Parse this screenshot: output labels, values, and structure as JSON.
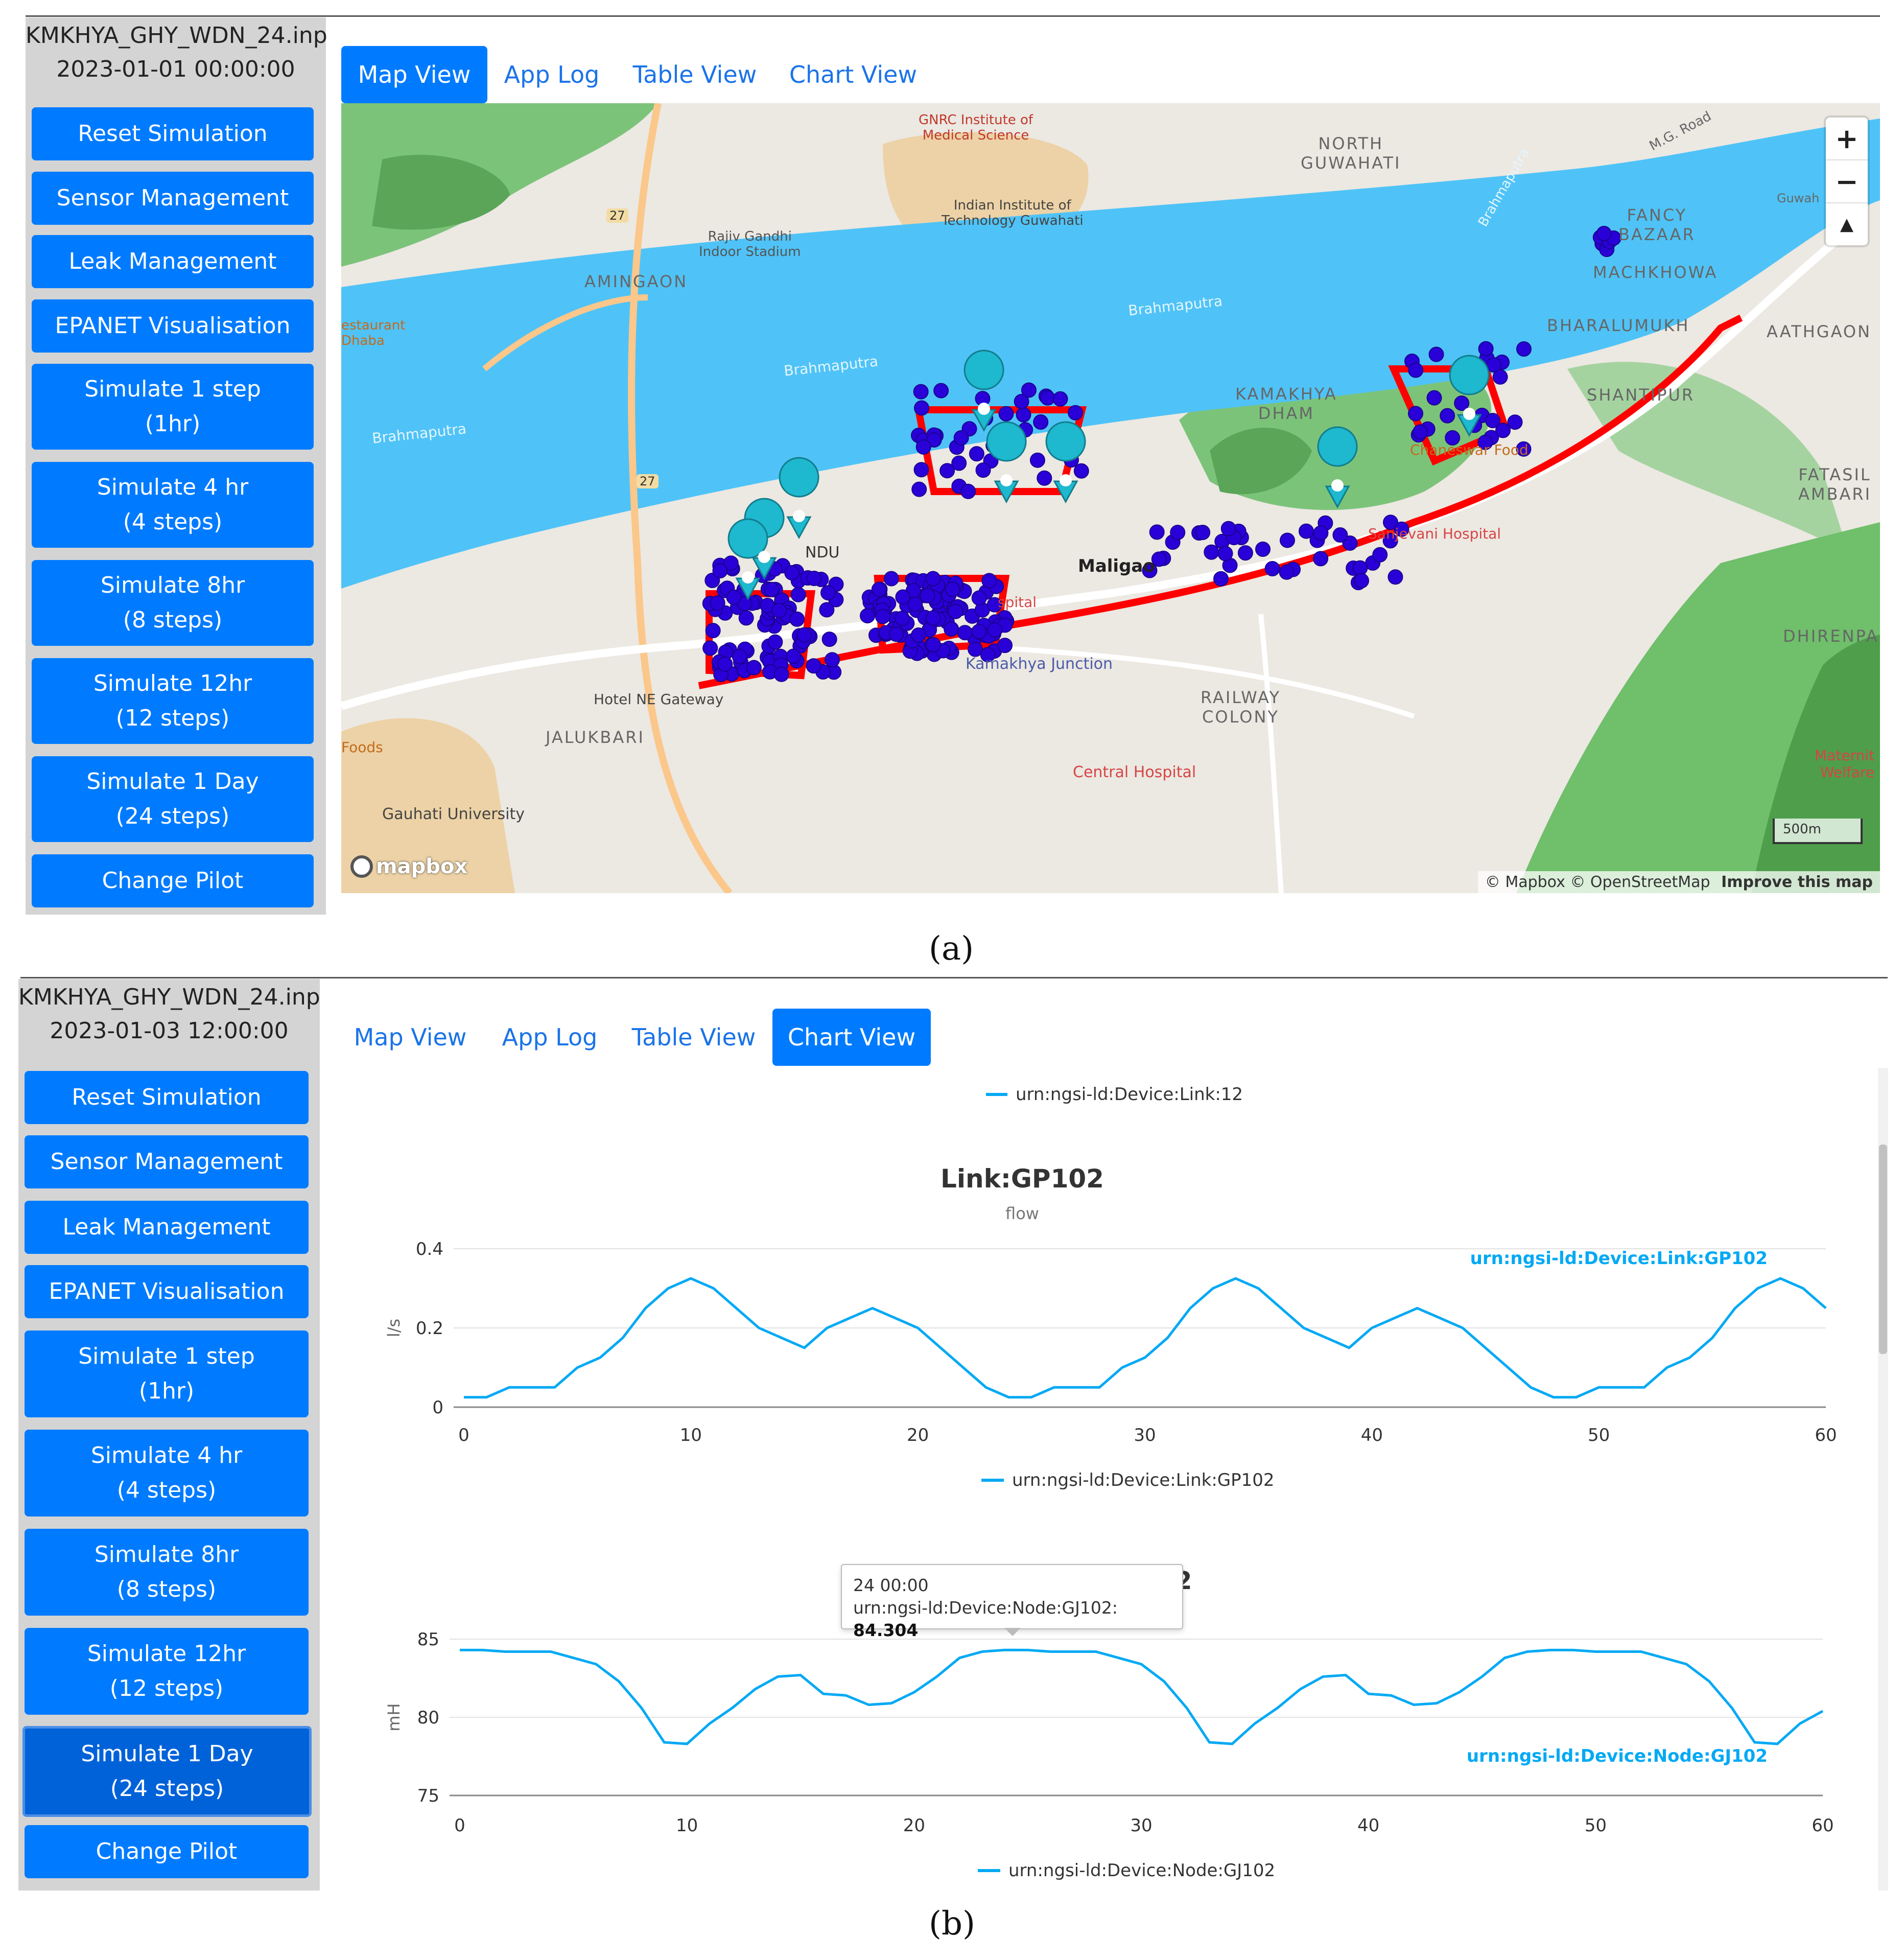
{
  "captions": {
    "a": "(a)",
    "b": "(b)"
  },
  "panel_a": {
    "file_name": "KMKHYA_GHY_WDN_24.inp",
    "sim_time": "2023-01-01 00:00:00",
    "buttons": [
      {
        "label": "Reset Simulation"
      },
      {
        "label": "Sensor Management"
      },
      {
        "label": "Leak Management"
      },
      {
        "label": "EPANET Visualisation"
      },
      {
        "label": "Simulate 1 step\n(1hr)"
      },
      {
        "label": "Simulate 4 hr\n(4 steps)"
      },
      {
        "label": "Simulate 8hr\n(8 steps)"
      },
      {
        "label": "Simulate 12hr\n(12 steps)"
      },
      {
        "label": "Simulate 1 Day\n(24 steps)"
      },
      {
        "label": "Change Pilot"
      }
    ],
    "tabs": [
      {
        "label": "Map View",
        "active": true
      },
      {
        "label": "App Log",
        "active": false
      },
      {
        "label": "Table View",
        "active": false
      },
      {
        "label": "Chart View",
        "active": false
      }
    ],
    "map": {
      "labels": {
        "gnrc": "GNRC Institute of\nMedical Science",
        "iit": "Indian Institute of\nTechnology Guwahati",
        "north_guwahati": "NORTH\nGUWAHATI",
        "mg_road": "M.G. Road",
        "fancy_bazaar": "FANCY\nBAZAAR",
        "machkhowa": "MACHKHOWA",
        "guwahati": "Guwah",
        "rajiv": "Rajiv Gandhi\nIndoor Stadium",
        "amingaon": "AMINGAON",
        "brahmaputra_1": "Brahmaputra",
        "brahmaputra_2": "Brahmaputra",
        "brahmaputra_3": "Brahmaputra",
        "brahmaputra_4": "Brahmaputra",
        "restaurant": "estaurant\nDhaba",
        "bharalumukh": "BHARALUMUKH",
        "aathgaon": "AATHGAON",
        "kamakhya": "KAMAKHYA\nDHAM",
        "shantipur": "SHANTIPUR",
        "food": "Chaneswar Food",
        "fatasil": "FATASIL\nAMBARI",
        "sanjevani": "Sanjevani Hospital",
        "maligaon": "Maligao",
        "hospital": "spital",
        "kamakhya_junction": "Kamakhya Junction",
        "dhirenpara": "DHIRENPA",
        "hotel": "Hotel NE Gateway",
        "railway_colony": "RAILWAY\nCOLONY",
        "jalukbari": "JALUKBARI",
        "foods": "Foods",
        "central_hospital": "Central Hospital",
        "gauhati_university": "Gauhati University",
        "maternity": "Maternit\nWelfare",
        "road_27a": "27",
        "road_27b": "27",
        "hundu": "NDU"
      },
      "attribution": "© Mapbox © OpenStreetMap",
      "improve": "Improve this map",
      "logo": "mapbox",
      "scale": "500m",
      "zoom_in": "+",
      "zoom_out": "−",
      "compass": "▲",
      "colors": {
        "water": "#4fc3f7",
        "land": "#ede9e4",
        "green": "#66bb6a",
        "pipe": "#ff0000",
        "node": "#1f00d6",
        "marker": "#1eb8cf"
      }
    }
  },
  "panel_b": {
    "file_name": "KMKHYA_GHY_WDN_24.inp",
    "sim_time": "2023-01-03 12:00:00",
    "buttons": [
      {
        "label": "Reset Simulation",
        "active": false
      },
      {
        "label": "Sensor Management",
        "active": false
      },
      {
        "label": "Leak Management",
        "active": false
      },
      {
        "label": "EPANET Visualisation",
        "active": false
      },
      {
        "label": "Simulate 1 step\n(1hr)",
        "active": false
      },
      {
        "label": "Simulate 4 hr\n(4 steps)",
        "active": false
      },
      {
        "label": "Simulate 8hr\n(8 steps)",
        "active": false
      },
      {
        "label": "Simulate 12hr\n(12 steps)",
        "active": false
      },
      {
        "label": "Simulate 1 Day\n(24 steps)",
        "active": true
      },
      {
        "label": "Change Pilot",
        "active": false
      }
    ],
    "tabs": [
      {
        "label": "Map View",
        "active": false
      },
      {
        "label": "App Log",
        "active": false
      },
      {
        "label": "Table View",
        "active": false
      },
      {
        "label": "Chart View",
        "active": true
      }
    ],
    "top_legend": "urn:ngsi-ld:Device:Link:12",
    "tooltip": {
      "time": "24 00:00",
      "label": "urn:ngsi-ld:Device:Node:GJ102: ",
      "value": "84.304"
    },
    "tooltip_behind_text": "2"
  },
  "chart_data": [
    {
      "type": "line",
      "title": "Link:GP102",
      "subtitle": "flow",
      "ylabel": "l/s",
      "xlabel": "",
      "xlim": [
        0,
        60
      ],
      "ylim": [
        0,
        0.4
      ],
      "xticks": [
        0,
        10,
        20,
        30,
        40,
        50,
        60
      ],
      "yticks": [
        0,
        0.2,
        0.4
      ],
      "ytick_labels": [
        "0",
        "0.2",
        "0.4"
      ],
      "grid": true,
      "legend_position": "bottom",
      "series_color": "#03a9f4",
      "series": [
        {
          "name": "urn:ngsi-ld:Device:Link:GP102",
          "x": [
            0,
            1,
            2,
            3,
            4,
            5,
            6,
            7,
            8,
            9,
            10,
            11,
            12,
            13,
            14,
            15,
            16,
            17,
            18,
            19,
            20,
            21,
            22,
            23,
            24,
            25,
            26,
            27,
            28,
            29,
            30,
            31,
            32,
            33,
            34,
            35,
            36,
            37,
            38,
            39,
            40,
            41,
            42,
            43,
            44,
            45,
            46,
            47,
            48,
            49,
            50,
            51,
            52,
            53,
            54,
            55,
            56,
            57,
            58,
            59,
            60
          ],
          "values": [
            0.025,
            0.025,
            0.05,
            0.05,
            0.05,
            0.1,
            0.125,
            0.175,
            0.25,
            0.3,
            0.325,
            0.3,
            0.25,
            0.2,
            0.175,
            0.15,
            0.2,
            0.225,
            0.25,
            0.225,
            0.2,
            0.15,
            0.1,
            0.05,
            0.025,
            0.025,
            0.05,
            0.05,
            0.05,
            0.1,
            0.125,
            0.175,
            0.25,
            0.3,
            0.325,
            0.3,
            0.25,
            0.2,
            0.175,
            0.15,
            0.2,
            0.225,
            0.25,
            0.225,
            0.2,
            0.15,
            0.1,
            0.05,
            0.025,
            0.025,
            0.05,
            0.05,
            0.05,
            0.1,
            0.125,
            0.175,
            0.25,
            0.3,
            0.325,
            0.3,
            0.25
          ]
        }
      ]
    },
    {
      "type": "line",
      "title": "",
      "ylabel": "mH",
      "xlabel": "",
      "xlim": [
        0,
        60
      ],
      "ylim": [
        75,
        85
      ],
      "xticks": [
        0,
        10,
        20,
        30,
        40,
        50,
        60
      ],
      "yticks": [
        75,
        80,
        85
      ],
      "ytick_labels": [
        "75",
        "80",
        "85"
      ],
      "grid": true,
      "legend_position": "bottom",
      "series_color": "#03a9f4",
      "series": [
        {
          "name": "urn:ngsi-ld:Device:Node:GJ102",
          "x": [
            0,
            1,
            2,
            3,
            4,
            5,
            6,
            7,
            8,
            9,
            10,
            11,
            12,
            13,
            14,
            15,
            16,
            17,
            18,
            19,
            20,
            21,
            22,
            23,
            24,
            25,
            26,
            27,
            28,
            29,
            30,
            31,
            32,
            33,
            34,
            35,
            36,
            37,
            38,
            39,
            40,
            41,
            42,
            43,
            44,
            45,
            46,
            47,
            48,
            49,
            50,
            51,
            52,
            53,
            54,
            55,
            56,
            57,
            58,
            59,
            60
          ],
          "values": [
            84.3,
            84.3,
            84.2,
            84.2,
            84.2,
            83.8,
            83.4,
            82.3,
            80.6,
            78.4,
            78.3,
            79.6,
            80.6,
            81.8,
            82.6,
            82.7,
            81.5,
            81.4,
            80.8,
            80.9,
            81.6,
            82.6,
            83.8,
            84.2,
            84.304,
            84.3,
            84.2,
            84.2,
            84.2,
            83.8,
            83.4,
            82.3,
            80.6,
            78.4,
            78.3,
            79.6,
            80.6,
            81.8,
            82.6,
            82.7,
            81.5,
            81.4,
            80.8,
            80.9,
            81.6,
            82.6,
            83.8,
            84.2,
            84.3,
            84.3,
            84.2,
            84.2,
            84.2,
            83.8,
            83.4,
            82.3,
            80.6,
            78.4,
            78.3,
            79.6,
            80.4
          ]
        }
      ]
    }
  ]
}
